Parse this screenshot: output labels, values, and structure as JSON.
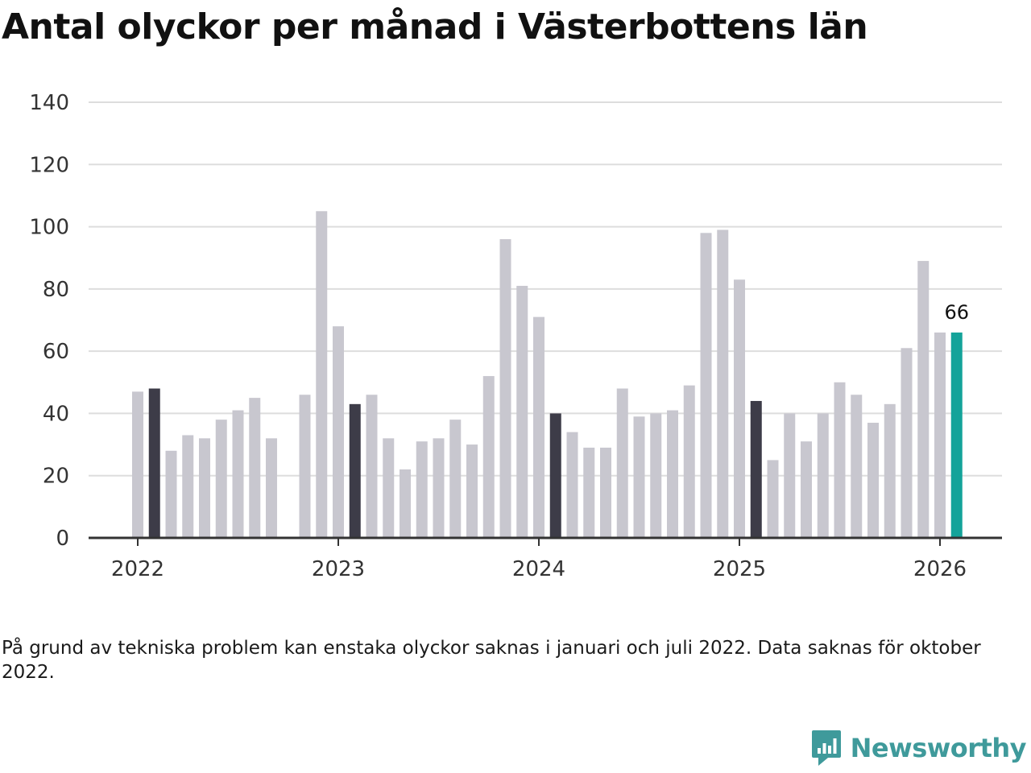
{
  "title": "Antal olyckor per månad i Västerbottens län",
  "note": "På grund av tekniska problem kan enstaka olyckor saknas i januari och juli 2022. Data saknas för oktober 2022.",
  "brand": {
    "name": "Newsworthy",
    "icon": "newsworthy-logo-icon",
    "color": "#3f9a9b"
  },
  "colors": {
    "bar": "#c8c7cf",
    "january_bar": "#3d3c48",
    "highlight_bar": "#14a39a",
    "grid": "#dddddd",
    "axis": "#333333"
  },
  "chart_data": {
    "type": "bar",
    "title": "Antal olyckor per månad i Västerbottens län",
    "xlabel": "",
    "ylabel": "",
    "ylim": [
      0,
      140
    ],
    "yticks": [
      "0",
      "20",
      "40",
      "60",
      "80",
      "100",
      "120",
      "140"
    ],
    "xticks": [
      "2022",
      "2023",
      "2024",
      "2025",
      "2026"
    ],
    "grid": true,
    "highlight_label": "66",
    "series": [
      {
        "name": "Antal olyckor",
        "values": [
          47,
          48,
          28,
          33,
          32,
          38,
          41,
          45,
          32,
          null,
          46,
          105,
          68,
          43,
          46,
          32,
          22,
          31,
          32,
          38,
          30,
          52,
          96,
          81,
          71,
          40,
          34,
          29,
          29,
          48,
          39,
          40,
          41,
          49,
          98,
          99,
          83,
          44,
          25,
          40,
          31,
          40,
          50,
          46,
          37,
          43,
          61,
          89,
          66,
          66
        ]
      }
    ]
  }
}
